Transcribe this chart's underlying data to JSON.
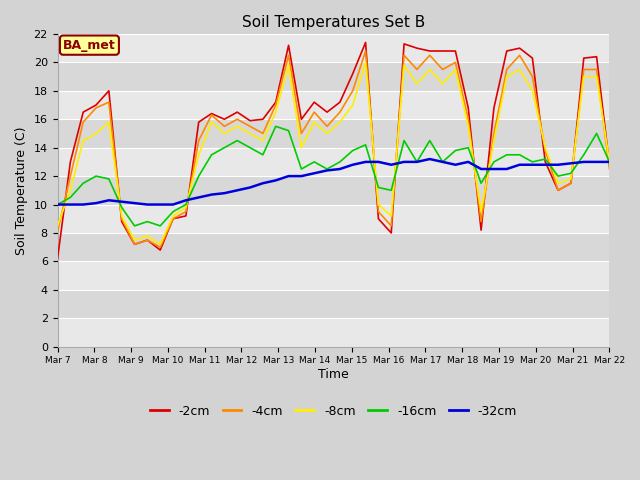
{
  "title": "Soil Temperatures Set B",
  "xlabel": "Time",
  "ylabel": "Soil Temperature (C)",
  "ylim": [
    0,
    22
  ],
  "yticks": [
    0,
    2,
    4,
    6,
    8,
    10,
    12,
    14,
    16,
    18,
    20,
    22
  ],
  "fig_bg_color": "#d3d3d3",
  "plot_bg_color": "#e8e8e8",
  "annotation_text": "BA_met",
  "annotation_bg": "#ffff99",
  "annotation_border": "#8b0000",
  "annotation_text_color": "#8b0000",
  "x_labels": [
    "Mar 7",
    "Mar 8",
    "Mar 9",
    "Mar 10",
    "Mar 11",
    "Mar 12",
    "Mar 13",
    "Mar 14",
    "Mar 15",
    "Mar 16",
    "Mar 17",
    "Mar 18",
    "Mar 19",
    "Mar 20",
    "Mar 21",
    "Mar 22"
  ],
  "series": {
    "-2cm": {
      "color": "#dd0000",
      "linewidth": 1.2,
      "values": [
        6.2,
        13.0,
        16.5,
        17.0,
        18.0,
        8.8,
        7.2,
        7.5,
        6.8,
        9.0,
        9.2,
        15.8,
        16.4,
        16.0,
        16.5,
        15.9,
        16.0,
        17.2,
        21.2,
        16.0,
        17.2,
        16.5,
        17.2,
        19.2,
        21.4,
        9.0,
        8.0,
        21.3,
        21.0,
        20.8,
        20.8,
        20.8,
        16.8,
        8.2,
        16.8,
        20.8,
        21.0,
        20.3,
        13.0,
        11.0,
        11.5,
        20.3,
        20.4,
        12.8
      ]
    },
    "-4cm": {
      "color": "#ff8800",
      "linewidth": 1.2,
      "values": [
        8.1,
        12.0,
        15.8,
        16.8,
        17.2,
        9.0,
        7.2,
        7.5,
        7.0,
        9.0,
        9.5,
        14.5,
        16.3,
        15.5,
        16.0,
        15.5,
        15.0,
        17.0,
        20.5,
        15.0,
        16.5,
        15.5,
        16.5,
        18.0,
        20.8,
        9.5,
        8.5,
        20.5,
        19.5,
        20.5,
        19.5,
        20.0,
        16.0,
        8.8,
        15.0,
        19.5,
        20.5,
        19.0,
        13.8,
        11.0,
        11.5,
        19.5,
        19.5,
        12.5
      ]
    },
    "-8cm": {
      "color": "#ffee00",
      "linewidth": 1.2,
      "values": [
        8.5,
        11.0,
        14.5,
        15.0,
        15.8,
        9.2,
        7.5,
        7.8,
        7.2,
        9.2,
        9.8,
        13.5,
        15.8,
        15.0,
        15.5,
        15.0,
        14.5,
        16.5,
        19.8,
        14.0,
        15.8,
        15.0,
        15.8,
        17.0,
        20.0,
        10.0,
        9.2,
        19.8,
        18.5,
        19.5,
        18.5,
        19.5,
        15.5,
        9.5,
        14.5,
        19.0,
        19.5,
        18.0,
        14.0,
        11.5,
        11.8,
        19.0,
        19.0,
        13.0
      ]
    },
    "-16cm": {
      "color": "#00cc00",
      "linewidth": 1.2,
      "values": [
        10.0,
        10.5,
        11.5,
        12.0,
        11.8,
        9.8,
        8.5,
        8.8,
        8.5,
        9.5,
        10.0,
        12.0,
        13.5,
        14.0,
        14.5,
        14.0,
        13.5,
        15.5,
        15.2,
        12.5,
        13.0,
        12.5,
        13.0,
        13.8,
        14.2,
        11.2,
        11.0,
        14.5,
        13.0,
        14.5,
        13.0,
        13.8,
        14.0,
        11.5,
        13.0,
        13.5,
        13.5,
        13.0,
        13.2,
        12.0,
        12.2,
        13.5,
        15.0,
        13.0
      ]
    },
    "-32cm": {
      "color": "#0000dd",
      "linewidth": 1.8,
      "values": [
        10.0,
        10.0,
        10.0,
        10.1,
        10.3,
        10.2,
        10.1,
        10.0,
        10.0,
        10.0,
        10.3,
        10.5,
        10.7,
        10.8,
        11.0,
        11.2,
        11.5,
        11.7,
        12.0,
        12.0,
        12.2,
        12.4,
        12.5,
        12.8,
        13.0,
        13.0,
        12.8,
        13.0,
        13.0,
        13.2,
        13.0,
        12.8,
        13.0,
        12.5,
        12.5,
        12.5,
        12.8,
        12.8,
        12.8,
        12.8,
        12.9,
        13.0,
        13.0,
        13.0
      ]
    }
  },
  "legend_order": [
    "-2cm",
    "-4cm",
    "-8cm",
    "-16cm",
    "-32cm"
  ],
  "band_colors": [
    "#e8e8e8",
    "#d8d8d8"
  ]
}
